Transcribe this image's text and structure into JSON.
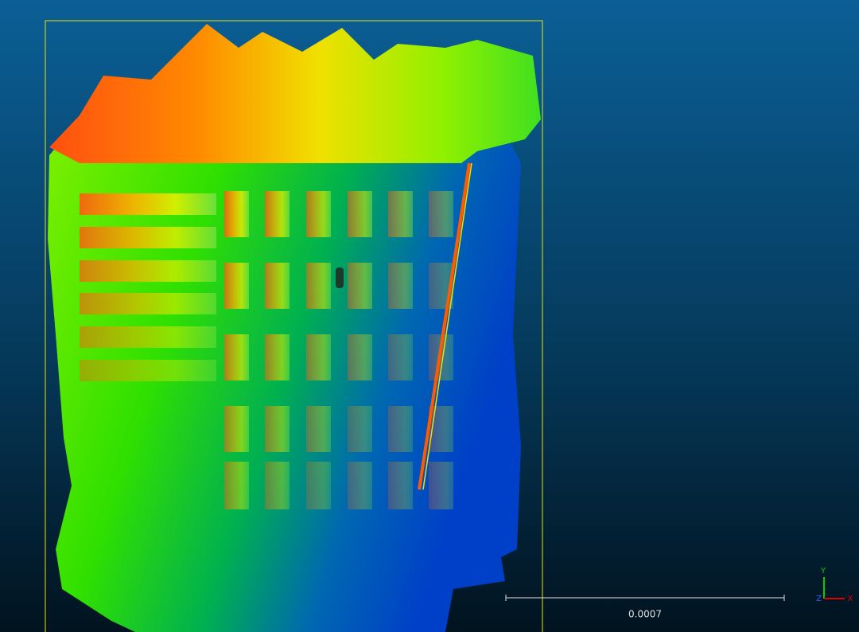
{
  "viewport": {
    "scale_bar": {
      "label": "0.0007"
    },
    "axes": {
      "x": "X",
      "y": "Y",
      "z": "Z"
    }
  }
}
